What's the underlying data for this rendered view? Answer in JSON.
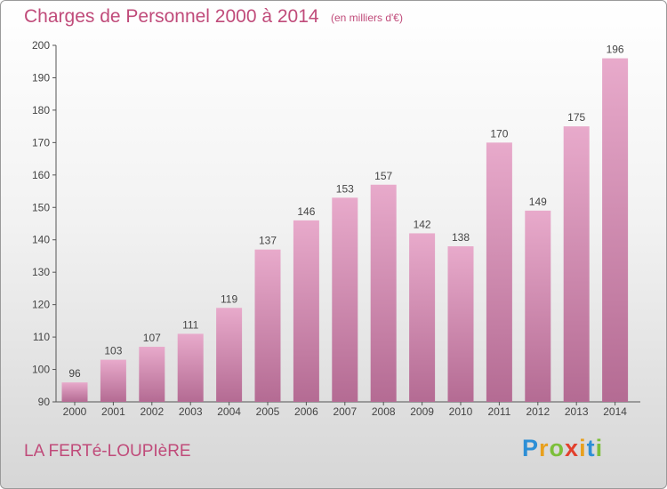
{
  "header": {
    "title": "Charges de Personnel 2000 à 2014",
    "subtitle": "(en milliers d'€)"
  },
  "footer": {
    "commune": "LA FERTé-LOUPIèRE",
    "logo_text": "Proxiti"
  },
  "colors": {
    "accent": "#c04b7a",
    "bar_light": "#e8aacb",
    "bar_dark": "#b46b93"
  },
  "chart_data": {
    "type": "bar",
    "title": "Charges de Personnel 2000 à 2014",
    "subtitle": "(en milliers d'€)",
    "categories": [
      "2000",
      "2001",
      "2002",
      "2003",
      "2004",
      "2005",
      "2006",
      "2007",
      "2008",
      "2009",
      "2010",
      "2011",
      "2012",
      "2013",
      "2014"
    ],
    "values": [
      96,
      103,
      107,
      111,
      119,
      137,
      146,
      153,
      157,
      142,
      138,
      170,
      149,
      175,
      196
    ],
    "ylim": [
      90,
      200
    ],
    "yticks": [
      90,
      100,
      110,
      120,
      130,
      140,
      150,
      160,
      170,
      180,
      190,
      200
    ],
    "grid": false,
    "legend": "none"
  }
}
